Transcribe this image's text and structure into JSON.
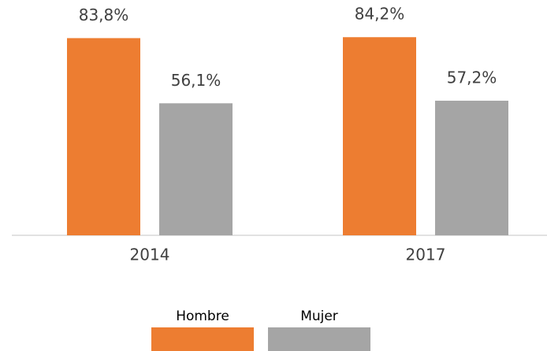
{
  "chart_data": {
    "type": "bar",
    "categories": [
      "2014",
      "2017"
    ],
    "series": [
      {
        "name": "Hombre",
        "color": "#ed7d31",
        "values": [
          83.8,
          84.2
        ],
        "value_labels": [
          "83,8%",
          "84,2%"
        ]
      },
      {
        "name": "Mujer",
        "color": "#a5a5a5",
        "values": [
          56.1,
          57.2
        ],
        "value_labels": [
          "56,1%",
          "57,2%"
        ]
      }
    ],
    "ylim": [
      0,
      100
    ]
  }
}
